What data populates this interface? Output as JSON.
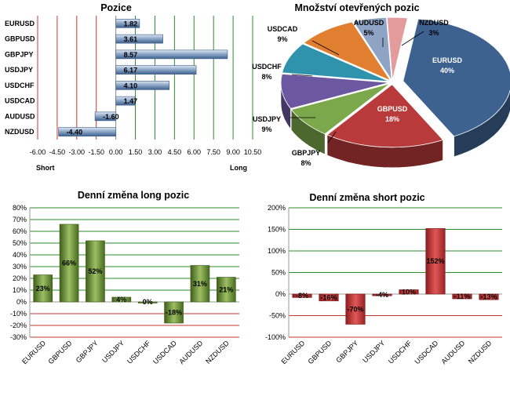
{
  "colors": {
    "bar_blue": "#5f7fa8",
    "bar_green": "#5d7e2d",
    "bar_red": "#b23030",
    "grid_green": "#2e8b2e",
    "grid_red": "#c0392b"
  },
  "chart_data": [
    {
      "id": "positions",
      "type": "bar",
      "orientation": "horizontal",
      "title": "Pozice",
      "xlabel_left": "Short",
      "xlabel_right": "Long",
      "categories": [
        "EURUSD",
        "GBPUSD",
        "GBPJPY",
        "USDJPY",
        "USDCHF",
        "USDCAD",
        "AUDUSD",
        "NZDUSD"
      ],
      "values": [
        1.82,
        3.61,
        8.57,
        6.17,
        4.1,
        1.47,
        -1.6,
        -4.4
      ],
      "value_labels": [
        "1.82",
        "3.61",
        "8.57",
        "6.17",
        "4.10",
        "1.47",
        "-1.60",
        "-4.40"
      ],
      "xlim": [
        -6.0,
        10.5
      ],
      "xticks": [
        -6.0,
        -4.5,
        -3.0,
        -1.5,
        0.0,
        1.5,
        3.0,
        4.5,
        6.0,
        7.5,
        9.0,
        10.5
      ],
      "xtick_labels": [
        "-6.00",
        "-4.50",
        "-3.00",
        "-1.50",
        "0.00",
        "1.50",
        "3.00",
        "4.50",
        "6.00",
        "7.50",
        "9.00",
        "10.50"
      ]
    },
    {
      "id": "open_positions",
      "type": "pie",
      "title": "Množství otevřených pozic",
      "slices": [
        {
          "label": "EURUSD",
          "pct_label": "40%",
          "value": 40,
          "color": "#3e6290"
        },
        {
          "label": "GBPUSD",
          "pct_label": "18%",
          "value": 18,
          "color": "#b83a3a"
        },
        {
          "label": "GBPJPY",
          "pct_label": "8%",
          "value": 8,
          "color": "#7ba84a"
        },
        {
          "label": "USDJPY",
          "pct_label": "9%",
          "value": 9,
          "color": "#6c58a0"
        },
        {
          "label": "USDCHF",
          "pct_label": "8%",
          "value": 8,
          "color": "#2f93ad"
        },
        {
          "label": "USDCAD",
          "pct_label": "9%",
          "value": 9,
          "color": "#e07f2f"
        },
        {
          "label": "AUDUSD",
          "pct_label": "5%",
          "value": 5,
          "color": "#8fa3c4"
        },
        {
          "label": "NZDUSD",
          "pct_label": "3%",
          "value": 3,
          "color": "#e39b9b"
        }
      ]
    },
    {
      "id": "long_change",
      "type": "bar",
      "title": "Denní změna long pozic",
      "categories": [
        "EURUSD",
        "GBPUSD",
        "GBPJPY",
        "USDJPY",
        "USDCHF",
        "USDCAD",
        "AUDUSD",
        "NZDUSD"
      ],
      "values": [
        23,
        66,
        52,
        4,
        0,
        -18,
        31,
        21
      ],
      "value_labels": [
        "23%",
        "66%",
        "52%",
        "4%",
        "0%",
        "-18%",
        "31%",
        "21%"
      ],
      "ylim": [
        -30,
        80
      ],
      "yticks": [
        -30,
        -20,
        -10,
        0,
        10,
        20,
        30,
        40,
        50,
        60,
        70,
        80
      ],
      "ytick_labels": [
        "-30%",
        "-20%",
        "-10%",
        "0%",
        "10%",
        "20%",
        "30%",
        "40%",
        "50%",
        "60%",
        "70%",
        "80%"
      ]
    },
    {
      "id": "short_change",
      "type": "bar",
      "title": "Denní změna short pozic",
      "categories": [
        "EURUSD",
        "GBPUSD",
        "GBPJPY",
        "USDJPY",
        "USDCHF",
        "USDCAD",
        "AUDUSD",
        "NZDUSD"
      ],
      "values": [
        -8,
        -16,
        -70,
        -4,
        10,
        152,
        -11,
        -13
      ],
      "value_labels": [
        "-8%",
        "-16%",
        "-70%",
        "-4%",
        "10%",
        "152%",
        "-11%",
        "-13%"
      ],
      "ylim": [
        -100,
        200
      ],
      "yticks": [
        -100,
        -50,
        0,
        50,
        100,
        150,
        200
      ],
      "ytick_labels": [
        "-100%",
        "-50%",
        "0%",
        "50%",
        "100%",
        "150%",
        "200%"
      ]
    }
  ]
}
